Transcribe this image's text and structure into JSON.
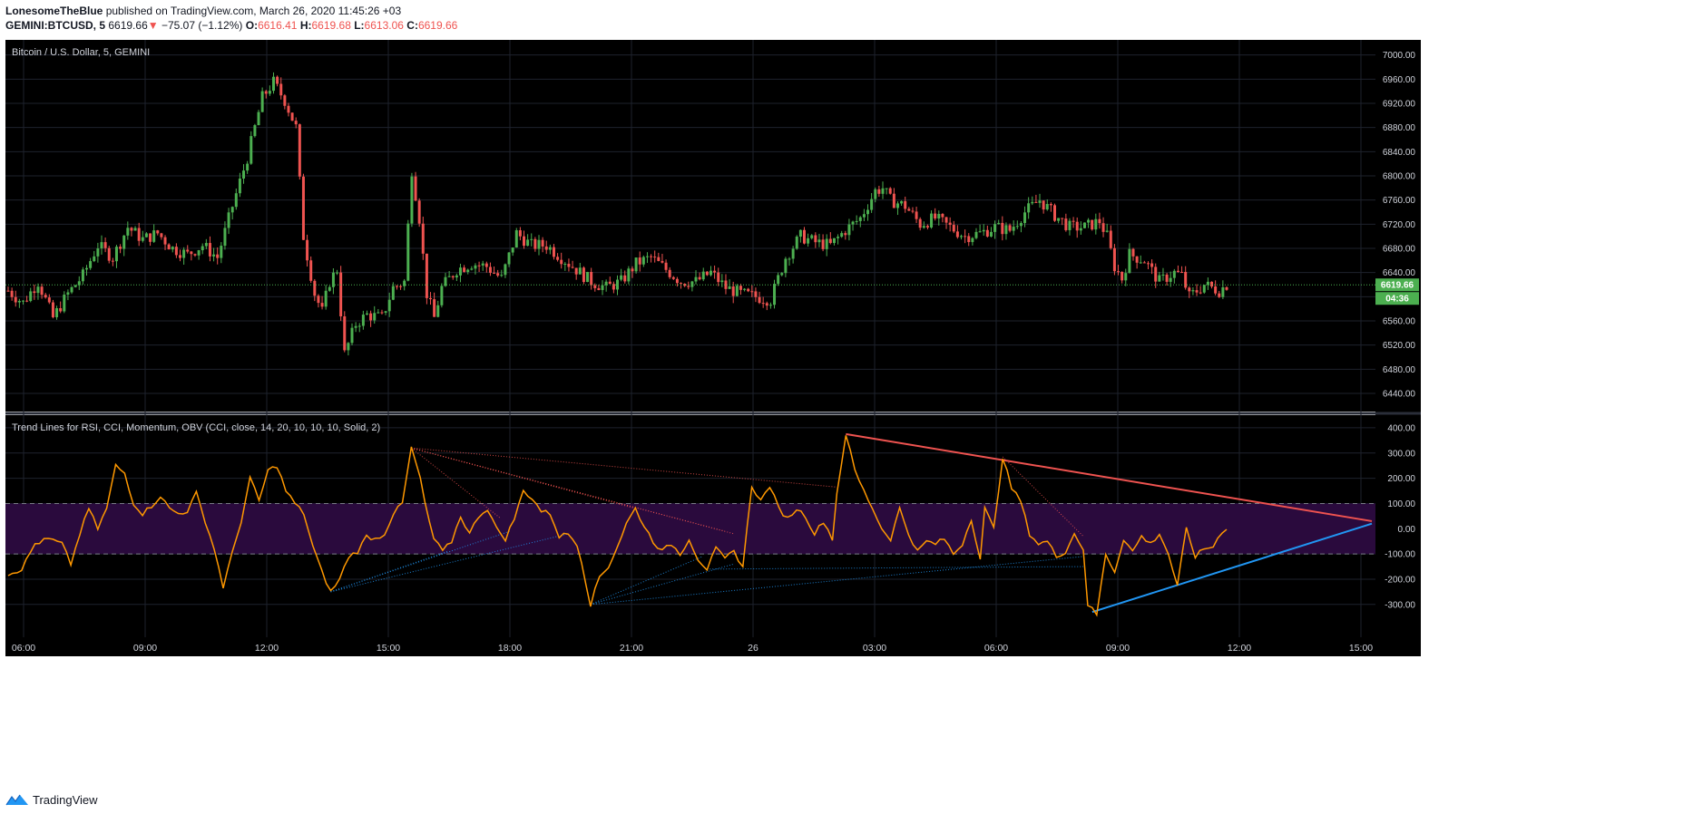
{
  "header": {
    "author": "LonesomeTheBlue",
    "published_text": "published on TradingView.com, March 26, 2020 11:45:26 +03",
    "symbol": "GEMINI:BTCUSD, 5",
    "last": "6619.66",
    "change": "−75.07 (−1.12%)",
    "o_label": "O:",
    "o_value": "6616.41",
    "h_label": "H:",
    "h_value": "6619.68",
    "l_label": "L:",
    "l_value": "6613.06",
    "c_label": "C:",
    "c_value": "6619.66"
  },
  "colors": {
    "up": "#4caf50",
    "down": "#ef5350",
    "osc": "#ff9800",
    "resistance": "#ef5350",
    "support": "#2196f3",
    "band": "#2a0a3d",
    "background": "#000000"
  },
  "footer": {
    "brand": "TradingView",
    "logo_icon": "tradingview-logo-icon"
  },
  "chart_data": [
    {
      "type": "candlestick",
      "title": "Bitcoin / U.S. Dollar, 5, GEMINI",
      "last_price_label": "6619.66",
      "countdown_label": "04:36",
      "ylim": [
        6410,
        7025
      ],
      "y_ticks": [
        "7000.00",
        "6960.00",
        "6920.00",
        "6880.00",
        "6840.00",
        "6800.00",
        "6760.00",
        "6720.00",
        "6680.00",
        "6640.00",
        "6600.00",
        "6560.00",
        "6520.00",
        "6480.00",
        "6440.00"
      ],
      "x_ticks": [
        "06:00",
        "09:00",
        "12:00",
        "15:00",
        "18:00",
        "21:00",
        "26",
        "03:00",
        "06:00",
        "09:00",
        "12:00",
        "15:00"
      ],
      "close_anchors": [
        [
          0,
          6610
        ],
        [
          4,
          6590
        ],
        [
          8,
          6625
        ],
        [
          12,
          6565
        ],
        [
          16,
          6605
        ],
        [
          20,
          6635
        ],
        [
          24,
          6685
        ],
        [
          28,
          6665
        ],
        [
          32,
          6715
        ],
        [
          36,
          6695
        ],
        [
          40,
          6705
        ],
        [
          44,
          6680
        ],
        [
          48,
          6670
        ],
        [
          52,
          6685
        ],
        [
          56,
          6665
        ],
        [
          60,
          6750
        ],
        [
          64,
          6830
        ],
        [
          68,
          6930
        ],
        [
          71,
          6955
        ],
        [
          74,
          6925
        ],
        [
          77,
          6880
        ],
        [
          79,
          6700
        ],
        [
          82,
          6605
        ],
        [
          84,
          6575
        ],
        [
          86,
          6625
        ],
        [
          88,
          6645
        ],
        [
          90,
          6505
        ],
        [
          93,
          6555
        ],
        [
          96,
          6570
        ],
        [
          100,
          6565
        ],
        [
          103,
          6615
        ],
        [
          106,
          6625
        ],
        [
          108,
          6810
        ],
        [
          110,
          6730
        ],
        [
          112,
          6605
        ],
        [
          114,
          6565
        ],
        [
          116,
          6615
        ],
        [
          120,
          6645
        ],
        [
          124,
          6655
        ],
        [
          128,
          6650
        ],
        [
          132,
          6630
        ],
        [
          136,
          6705
        ],
        [
          140,
          6685
        ],
        [
          144,
          6685
        ],
        [
          148,
          6665
        ],
        [
          152,
          6645
        ],
        [
          156,
          6625
        ],
        [
          160,
          6615
        ],
        [
          164,
          6625
        ],
        [
          168,
          6655
        ],
        [
          172,
          6665
        ],
        [
          176,
          6645
        ],
        [
          180,
          6625
        ],
        [
          184,
          6625
        ],
        [
          188,
          6640
        ],
        [
          192,
          6615
        ],
        [
          196,
          6605
        ],
        [
          200,
          6600
        ],
        [
          204,
          6595
        ],
        [
          208,
          6665
        ],
        [
          212,
          6700
        ],
        [
          216,
          6690
        ],
        [
          220,
          6685
        ],
        [
          224,
          6710
        ],
        [
          228,
          6730
        ],
        [
          232,
          6775
        ],
        [
          234,
          6780
        ],
        [
          236,
          6760
        ],
        [
          240,
          6750
        ],
        [
          244,
          6720
        ],
        [
          248,
          6730
        ],
        [
          252,
          6715
        ],
        [
          256,
          6700
        ],
        [
          260,
          6705
        ],
        [
          264,
          6715
        ],
        [
          268,
          6710
        ],
        [
          272,
          6740
        ],
        [
          276,
          6760
        ],
        [
          280,
          6735
        ],
        [
          284,
          6715
        ],
        [
          288,
          6715
        ],
        [
          292,
          6725
        ],
        [
          294,
          6700
        ],
        [
          296,
          6650
        ],
        [
          298,
          6630
        ],
        [
          300,
          6670
        ],
        [
          304,
          6660
        ],
        [
          308,
          6625
        ],
        [
          312,
          6640
        ],
        [
          314,
          6635
        ],
        [
          316,
          6600
        ],
        [
          320,
          6620
        ],
        [
          324,
          6610
        ],
        [
          326,
          6620
        ]
      ],
      "candle_count": 327
    },
    {
      "type": "line",
      "title": "Trend Lines for RSI, CCI, Momentum, OBV (CCI, close, 14, 20, 10, 10, 10, Solid, 2)",
      "ylim": [
        -430,
        450
      ],
      "y_ticks": [
        "400.00",
        "300.00",
        "200.00",
        "100.00",
        "0.00",
        "-100.00",
        "-200.00",
        "-300.00"
      ],
      "band": [
        -100,
        100
      ],
      "cci_anchors": [
        [
          0,
          -180
        ],
        [
          3,
          -160
        ],
        [
          6,
          -60
        ],
        [
          9,
          -40
        ],
        [
          12,
          -60
        ],
        [
          14,
          -140
        ],
        [
          16,
          -20
        ],
        [
          18,
          80
        ],
        [
          20,
          0
        ],
        [
          22,
          80
        ],
        [
          24,
          250
        ],
        [
          26,
          220
        ],
        [
          28,
          100
        ],
        [
          30,
          60
        ],
        [
          32,
          90
        ],
        [
          34,
          130
        ],
        [
          36,
          80
        ],
        [
          38,
          60
        ],
        [
          40,
          70
        ],
        [
          42,
          140
        ],
        [
          44,
          30
        ],
        [
          46,
          -80
        ],
        [
          48,
          -230
        ],
        [
          50,
          -100
        ],
        [
          52,
          30
        ],
        [
          54,
          200
        ],
        [
          56,
          110
        ],
        [
          58,
          230
        ],
        [
          60,
          250
        ],
        [
          62,
          150
        ],
        [
          64,
          100
        ],
        [
          66,
          60
        ],
        [
          68,
          -70
        ],
        [
          70,
          -170
        ],
        [
          72,
          -250
        ],
        [
          74,
          -200
        ],
        [
          76,
          -110
        ],
        [
          78,
          -90
        ],
        [
          80,
          -30
        ],
        [
          82,
          -40
        ],
        [
          84,
          -20
        ],
        [
          86,
          60
        ],
        [
          88,
          100
        ],
        [
          90,
          320
        ],
        [
          92,
          200
        ],
        [
          93,
          100
        ],
        [
          95,
          -40
        ],
        [
          97,
          -90
        ],
        [
          99,
          -50
        ],
        [
          101,
          50
        ],
        [
          103,
          -20
        ],
        [
          105,
          50
        ],
        [
          107,
          80
        ],
        [
          109,
          0
        ],
        [
          111,
          -40
        ],
        [
          113,
          40
        ],
        [
          115,
          150
        ],
        [
          117,
          120
        ],
        [
          119,
          70
        ],
        [
          121,
          60
        ],
        [
          123,
          -30
        ],
        [
          125,
          -20
        ],
        [
          127,
          -60
        ],
        [
          128,
          -130
        ],
        [
          130,
          -300
        ],
        [
          132,
          -190
        ],
        [
          134,
          -150
        ],
        [
          136,
          -70
        ],
        [
          138,
          20
        ],
        [
          140,
          80
        ],
        [
          142,
          10
        ],
        [
          144,
          -50
        ],
        [
          146,
          -90
        ],
        [
          148,
          -60
        ],
        [
          150,
          -100
        ],
        [
          152,
          -40
        ],
        [
          154,
          -120
        ],
        [
          156,
          -160
        ],
        [
          158,
          -80
        ],
        [
          160,
          -120
        ],
        [
          162,
          -90
        ],
        [
          164,
          -150
        ],
        [
          166,
          170
        ],
        [
          168,
          110
        ],
        [
          170,
          170
        ],
        [
          172,
          80
        ],
        [
          174,
          40
        ],
        [
          176,
          80
        ],
        [
          178,
          50
        ],
        [
          180,
          -20
        ],
        [
          182,
          30
        ],
        [
          184,
          -40
        ],
        [
          185,
          140
        ],
        [
          187,
          375
        ],
        [
          189,
          230
        ],
        [
          191,
          150
        ],
        [
          193,
          80
        ],
        [
          195,
          0
        ],
        [
          197,
          -40
        ],
        [
          199,
          80
        ],
        [
          201,
          -20
        ],
        [
          203,
          -90
        ],
        [
          205,
          -50
        ],
        [
          207,
          -60
        ],
        [
          209,
          -40
        ],
        [
          211,
          -100
        ],
        [
          213,
          -60
        ],
        [
          215,
          40
        ],
        [
          217,
          -120
        ],
        [
          218,
          80
        ],
        [
          220,
          0
        ],
        [
          222,
          285
        ],
        [
          224,
          160
        ],
        [
          226,
          110
        ],
        [
          228,
          -20
        ],
        [
          230,
          -60
        ],
        [
          232,
          -50
        ],
        [
          234,
          -110
        ],
        [
          236,
          -90
        ],
        [
          238,
          -20
        ],
        [
          240,
          -80
        ],
        [
          241,
          -300
        ],
        [
          243,
          -340
        ],
        [
          245,
          -100
        ],
        [
          247,
          -170
        ],
        [
          249,
          -40
        ],
        [
          251,
          -90
        ],
        [
          253,
          -30
        ],
        [
          255,
          -60
        ],
        [
          257,
          -20
        ],
        [
          259,
          -100
        ],
        [
          261,
          -230
        ],
        [
          263,
          0
        ],
        [
          265,
          -110
        ],
        [
          267,
          -80
        ],
        [
          269,
          -70
        ],
        [
          271,
          -10
        ],
        [
          272,
          0
        ]
      ],
      "resistance_line": [
        [
          187,
          375
        ],
        [
          299,
          30
        ]
      ],
      "support_line": [
        [
          242,
          -330
        ],
        [
          299,
          20
        ]
      ]
    }
  ]
}
